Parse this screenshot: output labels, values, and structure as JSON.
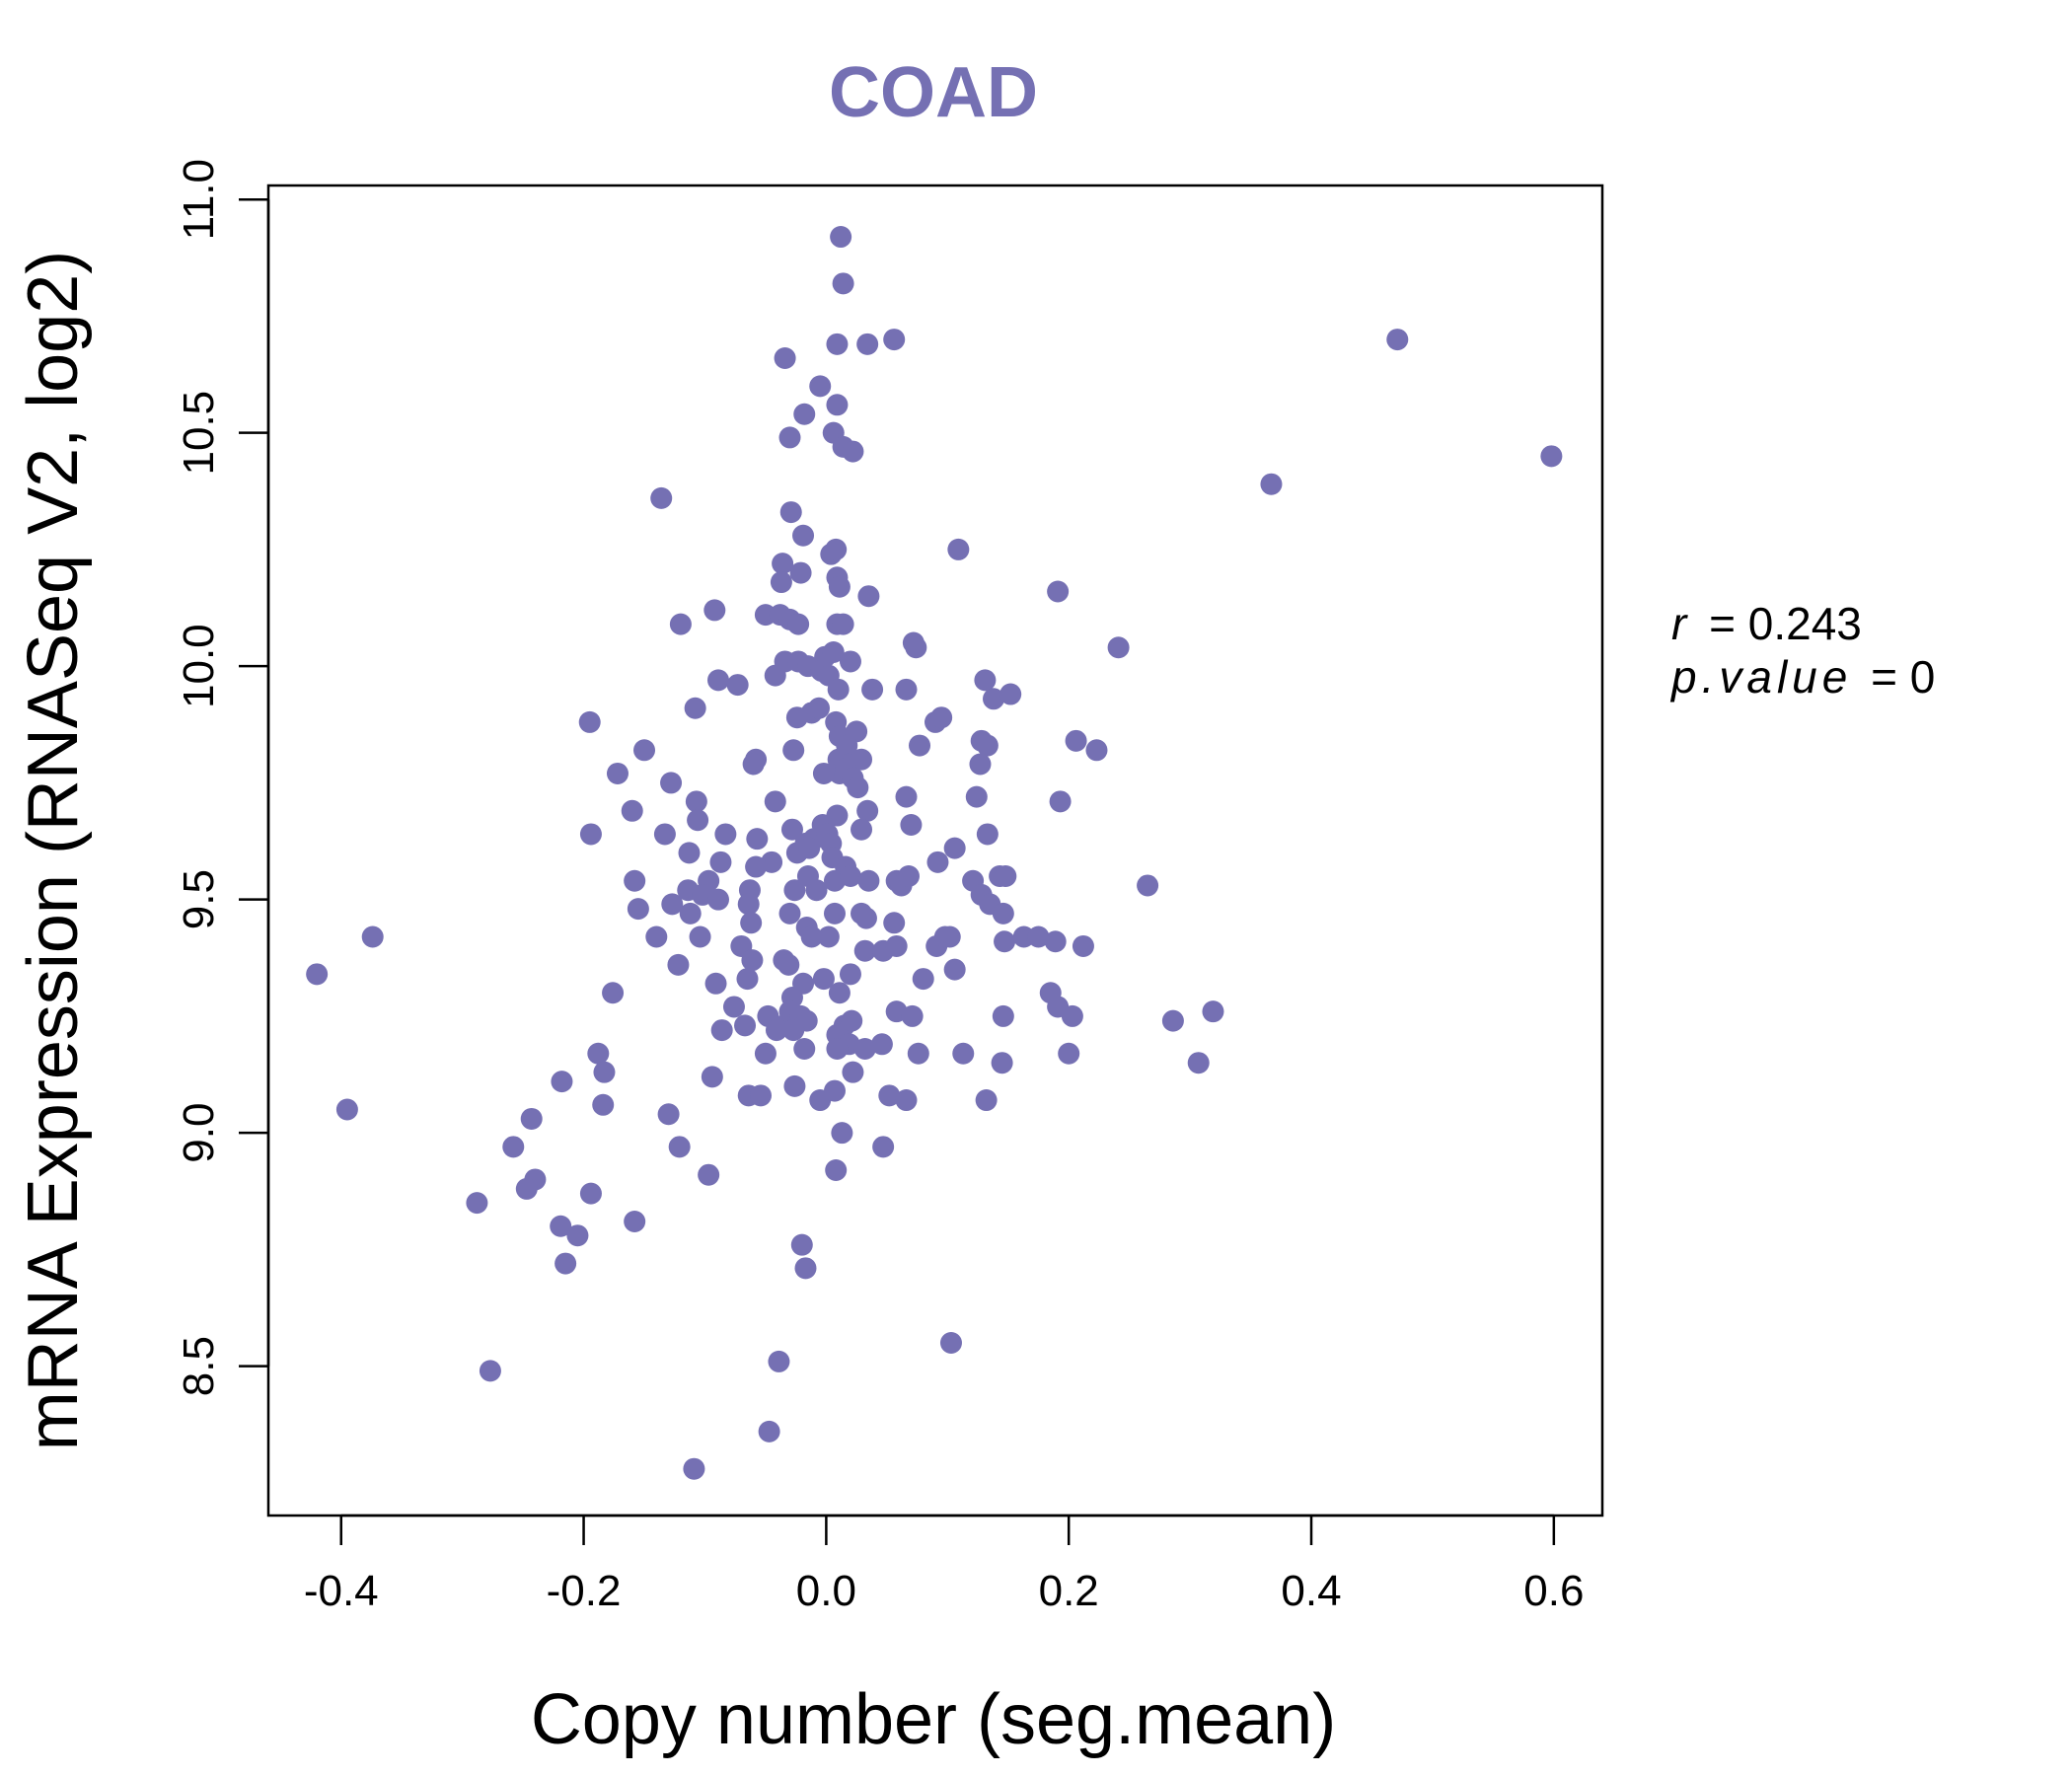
{
  "chart_data": {
    "type": "scatter",
    "title": "COAD",
    "xlabel": "Copy number (seg.mean)",
    "ylabel": "mRNA Expression (RNASeq V2, log2)",
    "xlim": [
      -0.46,
      0.64
    ],
    "ylim": [
      8.18,
      11.03
    ],
    "xticks": [
      -0.4,
      -0.2,
      0.0,
      0.2,
      0.4,
      0.6
    ],
    "xtick_labels": [
      "-0.4",
      "-0.2",
      "0.0",
      "0.2",
      "0.4",
      "0.6"
    ],
    "yticks": [
      8.5,
      9.0,
      9.5,
      10.0,
      10.5,
      11.0
    ],
    "ytick_labels": [
      "8.5",
      "9.0",
      "9.5",
      "10.0",
      "10.5",
      "11.0"
    ],
    "point_color": "#7570b3",
    "stats": {
      "r_label": "r",
      "r_value": "0.243",
      "p_label": "p.value",
      "p_value": "0"
    },
    "points": [
      [
        0.012,
        10.92
      ],
      [
        0.014,
        10.82
      ],
      [
        0.009,
        10.69
      ],
      [
        0.034,
        10.69
      ],
      [
        0.056,
        10.7
      ],
      [
        -0.034,
        10.66
      ],
      [
        0.471,
        10.7
      ],
      [
        -0.005,
        10.6
      ],
      [
        0.009,
        10.56
      ],
      [
        -0.018,
        10.54
      ],
      [
        -0.03,
        10.49
      ],
      [
        0.006,
        10.5
      ],
      [
        0.014,
        10.47
      ],
      [
        0.022,
        10.46
      ],
      [
        0.598,
        10.45
      ],
      [
        0.367,
        10.39
      ],
      [
        -0.136,
        10.36
      ],
      [
        -0.029,
        10.33
      ],
      [
        -0.019,
        10.28
      ],
      [
        0.109,
        10.25
      ],
      [
        0.004,
        10.24
      ],
      [
        0.008,
        10.25
      ],
      [
        -0.036,
        10.22
      ],
      [
        -0.021,
        10.2
      ],
      [
        -0.037,
        10.18
      ],
      [
        0.009,
        10.19
      ],
      [
        0.011,
        10.17
      ],
      [
        0.035,
        10.15
      ],
      [
        0.191,
        10.16
      ],
      [
        -0.092,
        10.12
      ],
      [
        -0.05,
        10.11
      ],
      [
        -0.038,
        10.11
      ],
      [
        -0.03,
        10.1
      ],
      [
        -0.023,
        10.09
      ],
      [
        -0.12,
        10.09
      ],
      [
        0.009,
        10.09
      ],
      [
        0.014,
        10.09
      ],
      [
        0.072,
        10.05
      ],
      [
        0.074,
        10.04
      ],
      [
        0.241,
        10.04
      ],
      [
        -0.034,
        10.01
      ],
      [
        -0.023,
        10.01
      ],
      [
        -0.001,
        10.02
      ],
      [
        0.006,
        10.03
      ],
      [
        0.02,
        10.01
      ],
      [
        -0.015,
        10.0
      ],
      [
        -0.004,
        9.99
      ],
      [
        0.002,
        9.98
      ],
      [
        -0.089,
        9.97
      ],
      [
        -0.073,
        9.96
      ],
      [
        -0.042,
        9.98
      ],
      [
        0.01,
        9.95
      ],
      [
        0.038,
        9.95
      ],
      [
        0.066,
        9.95
      ],
      [
        0.131,
        9.97
      ],
      [
        0.138,
        9.93
      ],
      [
        0.152,
        9.94
      ],
      [
        -0.108,
        9.91
      ],
      [
        -0.012,
        9.9
      ],
      [
        -0.024,
        9.89
      ],
      [
        -0.006,
        9.91
      ],
      [
        0.008,
        9.88
      ],
      [
        0.025,
        9.86
      ],
      [
        0.09,
        9.88
      ],
      [
        0.095,
        9.89
      ],
      [
        -0.195,
        9.88
      ],
      [
        -0.15,
        9.82
      ],
      [
        0.011,
        9.85
      ],
      [
        0.017,
        9.83
      ],
      [
        0.128,
        9.84
      ],
      [
        0.133,
        9.83
      ],
      [
        0.206,
        9.84
      ],
      [
        0.223,
        9.82
      ],
      [
        -0.027,
        9.82
      ],
      [
        -0.058,
        9.8
      ],
      [
        -0.06,
        9.79
      ],
      [
        0.01,
        9.8
      ],
      [
        0.019,
        9.79
      ],
      [
        0.029,
        9.8
      ],
      [
        0.011,
        9.77
      ],
      [
        0.016,
        9.78
      ],
      [
        0.022,
        9.76
      ],
      [
        0.077,
        9.83
      ],
      [
        -0.002,
        9.77
      ],
      [
        0.127,
        9.79
      ],
      [
        -0.172,
        9.77
      ],
      [
        -0.128,
        9.75
      ],
      [
        0.026,
        9.74
      ],
      [
        -0.107,
        9.71
      ],
      [
        -0.042,
        9.71
      ],
      [
        0.066,
        9.72
      ],
      [
        0.124,
        9.72
      ],
      [
        0.193,
        9.71
      ],
      [
        -0.16,
        9.69
      ],
      [
        -0.106,
        9.67
      ],
      [
        0.009,
        9.68
      ],
      [
        -0.003,
        9.66
      ],
      [
        0.034,
        9.69
      ],
      [
        0.07,
        9.66
      ],
      [
        -0.194,
        9.64
      ],
      [
        -0.133,
        9.64
      ],
      [
        -0.083,
        9.64
      ],
      [
        -0.057,
        9.63
      ],
      [
        -0.028,
        9.65
      ],
      [
        -0.017,
        9.62
      ],
      [
        -0.01,
        9.63
      ],
      [
        0.001,
        9.64
      ],
      [
        0.004,
        9.62
      ],
      [
        0.029,
        9.65
      ],
      [
        0.133,
        9.64
      ],
      [
        -0.113,
        9.6
      ],
      [
        -0.045,
        9.58
      ],
      [
        -0.024,
        9.6
      ],
      [
        -0.014,
        9.61
      ],
      [
        0.005,
        9.59
      ],
      [
        0.016,
        9.57
      ],
      [
        0.092,
        9.58
      ],
      [
        0.106,
        9.61
      ],
      [
        -0.087,
        9.58
      ],
      [
        -0.058,
        9.57
      ],
      [
        -0.097,
        9.54
      ],
      [
        -0.158,
        9.54
      ],
      [
        -0.114,
        9.52
      ],
      [
        -0.102,
        9.51
      ],
      [
        -0.063,
        9.52
      ],
      [
        -0.026,
        9.52
      ],
      [
        -0.015,
        9.55
      ],
      [
        -0.008,
        9.52
      ],
      [
        0.007,
        9.54
      ],
      [
        0.02,
        9.55
      ],
      [
        0.035,
        9.54
      ],
      [
        0.058,
        9.54
      ],
      [
        0.062,
        9.53
      ],
      [
        0.068,
        9.55
      ],
      [
        0.121,
        9.54
      ],
      [
        0.128,
        9.51
      ],
      [
        0.143,
        9.55
      ],
      [
        0.148,
        9.55
      ],
      [
        0.265,
        9.53
      ],
      [
        -0.155,
        9.48
      ],
      [
        -0.127,
        9.49
      ],
      [
        -0.112,
        9.47
      ],
      [
        -0.089,
        9.5
      ],
      [
        -0.064,
        9.49
      ],
      [
        -0.062,
        9.45
      ],
      [
        -0.03,
        9.47
      ],
      [
        -0.016,
        9.44
      ],
      [
        0.007,
        9.47
      ],
      [
        0.029,
        9.47
      ],
      [
        0.033,
        9.46
      ],
      [
        0.056,
        9.45
      ],
      [
        0.135,
        9.49
      ],
      [
        0.146,
        9.47
      ],
      [
        -0.374,
        9.42
      ],
      [
        -0.14,
        9.42
      ],
      [
        -0.104,
        9.42
      ],
      [
        -0.07,
        9.4
      ],
      [
        -0.012,
        9.42
      ],
      [
        0.002,
        9.42
      ],
      [
        0.032,
        9.39
      ],
      [
        0.047,
        9.39
      ],
      [
        0.058,
        9.4
      ],
      [
        0.091,
        9.4
      ],
      [
        0.098,
        9.42
      ],
      [
        0.102,
        9.42
      ],
      [
        0.147,
        9.41
      ],
      [
        0.163,
        9.42
      ],
      [
        0.175,
        9.42
      ],
      [
        0.189,
        9.41
      ],
      [
        0.212,
        9.4
      ],
      [
        -0.42,
        9.34
      ],
      [
        -0.122,
        9.36
      ],
      [
        -0.061,
        9.37
      ],
      [
        -0.035,
        9.37
      ],
      [
        -0.031,
        9.36
      ],
      [
        -0.019,
        9.32
      ],
      [
        -0.002,
        9.33
      ],
      [
        0.02,
        9.34
      ],
      [
        0.08,
        9.33
      ],
      [
        0.106,
        9.35
      ],
      [
        -0.176,
        9.3
      ],
      [
        -0.091,
        9.32
      ],
      [
        -0.065,
        9.33
      ],
      [
        -0.028,
        9.29
      ],
      [
        0.011,
        9.3
      ],
      [
        0.185,
        9.3
      ],
      [
        -0.076,
        9.27
      ],
      [
        -0.048,
        9.25
      ],
      [
        -0.035,
        9.23
      ],
      [
        -0.03,
        9.26
      ],
      [
        -0.021,
        9.25
      ],
      [
        -0.016,
        9.24
      ],
      [
        0.015,
        9.23
      ],
      [
        0.021,
        9.24
      ],
      [
        0.058,
        9.26
      ],
      [
        0.071,
        9.25
      ],
      [
        0.146,
        9.25
      ],
      [
        0.191,
        9.27
      ],
      [
        0.203,
        9.25
      ],
      [
        0.286,
        9.24
      ],
      [
        0.319,
        9.26
      ],
      [
        -0.086,
        9.22
      ],
      [
        -0.067,
        9.23
      ],
      [
        -0.041,
        9.22
      ],
      [
        -0.027,
        9.22
      ],
      [
        0.009,
        9.21
      ],
      [
        0.019,
        9.19
      ],
      [
        0.046,
        9.19
      ],
      [
        -0.188,
        9.17
      ],
      [
        -0.05,
        9.17
      ],
      [
        -0.018,
        9.18
      ],
      [
        0.009,
        9.18
      ],
      [
        0.032,
        9.18
      ],
      [
        0.076,
        9.17
      ],
      [
        0.113,
        9.17
      ],
      [
        0.2,
        9.17
      ],
      [
        -0.183,
        9.13
      ],
      [
        -0.094,
        9.12
      ],
      [
        -0.026,
        9.1
      ],
      [
        0.022,
        9.13
      ],
      [
        0.145,
        9.15
      ],
      [
        0.307,
        9.15
      ],
      [
        -0.218,
        9.11
      ],
      [
        -0.064,
        9.08
      ],
      [
        -0.054,
        9.08
      ],
      [
        -0.005,
        9.07
      ],
      [
        0.007,
        9.09
      ],
      [
        0.052,
        9.08
      ],
      [
        0.066,
        9.07
      ],
      [
        0.132,
        9.07
      ],
      [
        -0.184,
        9.06
      ],
      [
        -0.13,
        9.04
      ],
      [
        -0.243,
        9.03
      ],
      [
        -0.395,
        9.05
      ],
      [
        0.013,
        9.0
      ],
      [
        -0.258,
        8.97
      ],
      [
        -0.121,
        8.97
      ],
      [
        0.047,
        8.97
      ],
      [
        0.008,
        8.92
      ],
      [
        -0.24,
        8.9
      ],
      [
        -0.097,
        8.91
      ],
      [
        -0.247,
        8.88
      ],
      [
        -0.194,
        8.87
      ],
      [
        -0.288,
        8.85
      ],
      [
        -0.158,
        8.81
      ],
      [
        -0.219,
        8.8
      ],
      [
        -0.205,
        8.78
      ],
      [
        -0.215,
        8.72
      ],
      [
        -0.02,
        8.76
      ],
      [
        -0.017,
        8.71
      ],
      [
        0.103,
        8.55
      ],
      [
        -0.039,
        8.51
      ],
      [
        -0.277,
        8.49
      ],
      [
        -0.047,
        8.36
      ],
      [
        -0.109,
        8.28
      ]
    ]
  }
}
